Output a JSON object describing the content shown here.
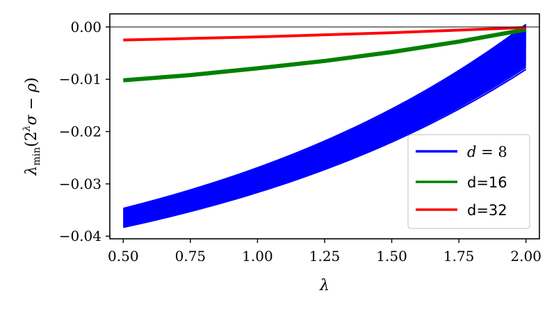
{
  "chart_data": {
    "type": "line",
    "xlabel": "λ",
    "ylabel": "λmin(2λσ − ρ)",
    "xlim": [
      0.45,
      2.05
    ],
    "ylim": [
      -0.0405,
      0.0025
    ],
    "x_ticks": [
      0.5,
      0.75,
      1.0,
      1.25,
      1.5,
      1.75,
      2.0
    ],
    "x_tick_labels": [
      "0.50",
      "0.75",
      "1.00",
      "1.25",
      "1.50",
      "1.75",
      "2.00"
    ],
    "y_ticks": [
      0.0,
      -0.01,
      -0.02,
      -0.03,
      -0.04
    ],
    "y_tick_labels": [
      "0.00",
      "−0.01",
      "−0.02",
      "−0.03",
      "−0.04"
    ],
    "reference_line": {
      "y": 0.0,
      "color": "#000000"
    },
    "legend": {
      "placement": "lower-right"
    },
    "grid": false,
    "series": [
      {
        "name": "d = 8",
        "color": "#0000ff",
        "x": [
          0.5,
          2.0
        ],
        "band_lower": [
          -0.0383,
          -0.0081
        ],
        "band_upper": [
          -0.0347,
          0.0005
        ],
        "curvature": 1.1,
        "representation": "many overlapping curves forming a band"
      },
      {
        "name": "d=16",
        "color": "#008000",
        "x": [
          0.5,
          0.75,
          1.0,
          1.25,
          1.5,
          1.75,
          2.0
        ],
        "y": [
          -0.0102,
          -0.0092,
          -0.0079,
          -0.0065,
          -0.0048,
          -0.0028,
          -0.0005
        ]
      },
      {
        "name": "d=32",
        "color": "#ff0000",
        "x": [
          0.5,
          0.75,
          1.0,
          1.25,
          1.5,
          1.75,
          2.0
        ],
        "y": [
          -0.0025,
          -0.0022,
          -0.0019,
          -0.0015,
          -0.0011,
          -0.0006,
          -0.0001
        ]
      }
    ]
  }
}
